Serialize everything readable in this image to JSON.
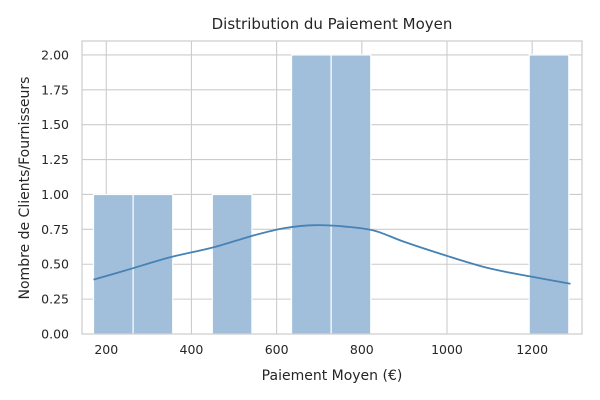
{
  "chart_data": {
    "type": "bar",
    "subtype": "histogram-with-kde",
    "title": "Distribution du Paiement Moyen",
    "xlabel": "Paiement Moyen (€)",
    "ylabel": "Nombre de Clients/Fournisseurs",
    "xlim": [
      143,
      1317
    ],
    "ylim": [
      0,
      2.1
    ],
    "x_ticks": [
      200,
      400,
      600,
      800,
      1000,
      1200
    ],
    "y_ticks": [
      0.0,
      0.25,
      0.5,
      0.75,
      1.0,
      1.25,
      1.5,
      1.75,
      2.0
    ],
    "y_tick_labels": [
      "0.00",
      "0.25",
      "0.50",
      "0.75",
      "1.00",
      "1.25",
      "1.50",
      "1.75",
      "2.00"
    ],
    "bins": [
      {
        "x0": 170,
        "x1": 263,
        "count": 1
      },
      {
        "x0": 263,
        "x1": 356,
        "count": 1
      },
      {
        "x0": 356,
        "x1": 449,
        "count": 0
      },
      {
        "x0": 449,
        "x1": 542,
        "count": 1
      },
      {
        "x0": 542,
        "x1": 635,
        "count": 0
      },
      {
        "x0": 635,
        "x1": 728,
        "count": 2
      },
      {
        "x0": 728,
        "x1": 821,
        "count": 2
      },
      {
        "x0": 821,
        "x1": 914,
        "count": 0
      },
      {
        "x0": 914,
        "x1": 1007,
        "count": 0
      },
      {
        "x0": 1007,
        "x1": 1100,
        "count": 0
      },
      {
        "x0": 1100,
        "x1": 1193,
        "count": 0
      },
      {
        "x0": 1193,
        "x1": 1286,
        "count": 2
      }
    ],
    "kde": {
      "x": [
        170,
        250,
        350,
        450,
        550,
        620,
        690,
        760,
        830,
        900,
        1000,
        1100,
        1200,
        1290
      ],
      "y": [
        0.39,
        0.46,
        0.55,
        0.62,
        0.71,
        0.76,
        0.78,
        0.77,
        0.74,
        0.66,
        0.56,
        0.47,
        0.41,
        0.36
      ]
    },
    "grid": true,
    "colors": {
      "bar_fill": "#a1bfdb",
      "bar_stroke": "#ffffff",
      "kde_line": "#4682b4",
      "grid": "#cccccc",
      "text": "#262626"
    }
  }
}
